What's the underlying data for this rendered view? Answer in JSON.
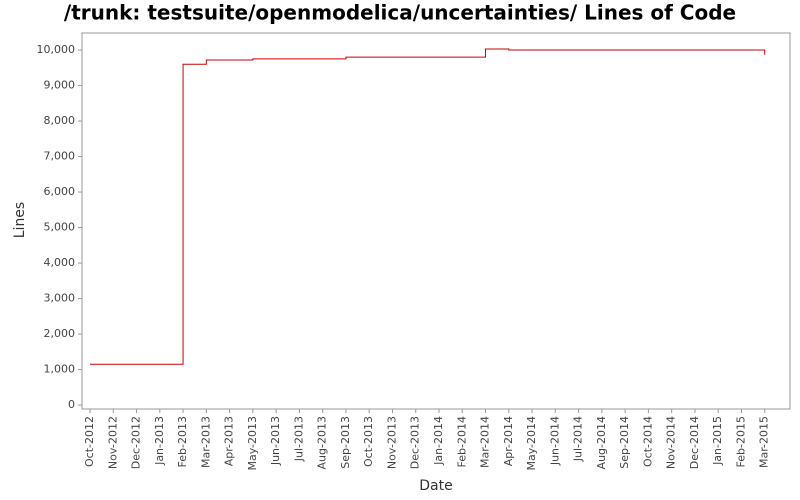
{
  "chart_data": {
    "type": "step",
    "title": "/trunk: testsuite/openmodelica/uncertainties/ Lines of Code",
    "x_label": "Date",
    "y_label": "Lines",
    "x": [
      "2012-10",
      "2013-02",
      "2013-03",
      "2013-05",
      "2013-09",
      "2014-03",
      "2014-04",
      "2015-03"
    ],
    "series": [
      {
        "name": "Lines",
        "color": "#cc0000",
        "values": [
          1150,
          9600,
          9720,
          9750,
          9800,
          10030,
          10000,
          9870
        ]
      }
    ],
    "xlim": [
      "2012-10",
      "2015-04"
    ],
    "xticks": [
      {
        "value": "2012-10",
        "label": "Oct-2012"
      },
      {
        "value": "2012-11",
        "label": "Nov-2012"
      },
      {
        "value": "2012-12",
        "label": "Dec-2012"
      },
      {
        "value": "2013-01",
        "label": "Jan-2013"
      },
      {
        "value": "2013-02",
        "label": "Feb-2013"
      },
      {
        "value": "2013-03",
        "label": "Mar-2013"
      },
      {
        "value": "2013-04",
        "label": "Apr-2013"
      },
      {
        "value": "2013-05",
        "label": "May-2013"
      },
      {
        "value": "2013-06",
        "label": "Jun-2013"
      },
      {
        "value": "2013-07",
        "label": "Jul-2013"
      },
      {
        "value": "2013-08",
        "label": "Aug-2013"
      },
      {
        "value": "2013-09",
        "label": "Sep-2013"
      },
      {
        "value": "2013-10",
        "label": "Oct-2013"
      },
      {
        "value": "2013-11",
        "label": "Nov-2013"
      },
      {
        "value": "2013-12",
        "label": "Dec-2013"
      },
      {
        "value": "2014-01",
        "label": "Jan-2014"
      },
      {
        "value": "2014-02",
        "label": "Feb-2014"
      },
      {
        "value": "2014-03",
        "label": "Mar-2014"
      },
      {
        "value": "2014-04",
        "label": "Apr-2014"
      },
      {
        "value": "2014-05",
        "label": "May-2014"
      },
      {
        "value": "2014-06",
        "label": "Jun-2014"
      },
      {
        "value": "2014-07",
        "label": "Jul-2014"
      },
      {
        "value": "2014-08",
        "label": "Aug-2014"
      },
      {
        "value": "2014-09",
        "label": "Sep-2014"
      },
      {
        "value": "2014-10",
        "label": "Oct-2014"
      },
      {
        "value": "2014-11",
        "label": "Nov-2014"
      },
      {
        "value": "2014-12",
        "label": "Dec-2014"
      },
      {
        "value": "2015-01",
        "label": "Jan-2015"
      },
      {
        "value": "2015-02",
        "label": "Feb-2015"
      },
      {
        "value": "2015-03",
        "label": "Mar-2015"
      }
    ],
    "ylim": [
      -110,
      10480
    ],
    "yticks": [
      0,
      {
        "value": 1000,
        "label": "1,000"
      },
      {
        "value": 2000,
        "label": "2,000"
      },
      {
        "value": 3000,
        "label": "3,000"
      },
      {
        "value": 4000,
        "label": "4,000"
      },
      {
        "value": 5000,
        "label": "5,000"
      },
      {
        "value": 6000,
        "label": "6,000"
      },
      {
        "value": 7000,
        "label": "7,000"
      },
      {
        "value": 8000,
        "label": "8,000"
      },
      {
        "value": 9000,
        "label": "9,000"
      },
      {
        "value": 10000,
        "label": "10,000"
      }
    ]
  }
}
